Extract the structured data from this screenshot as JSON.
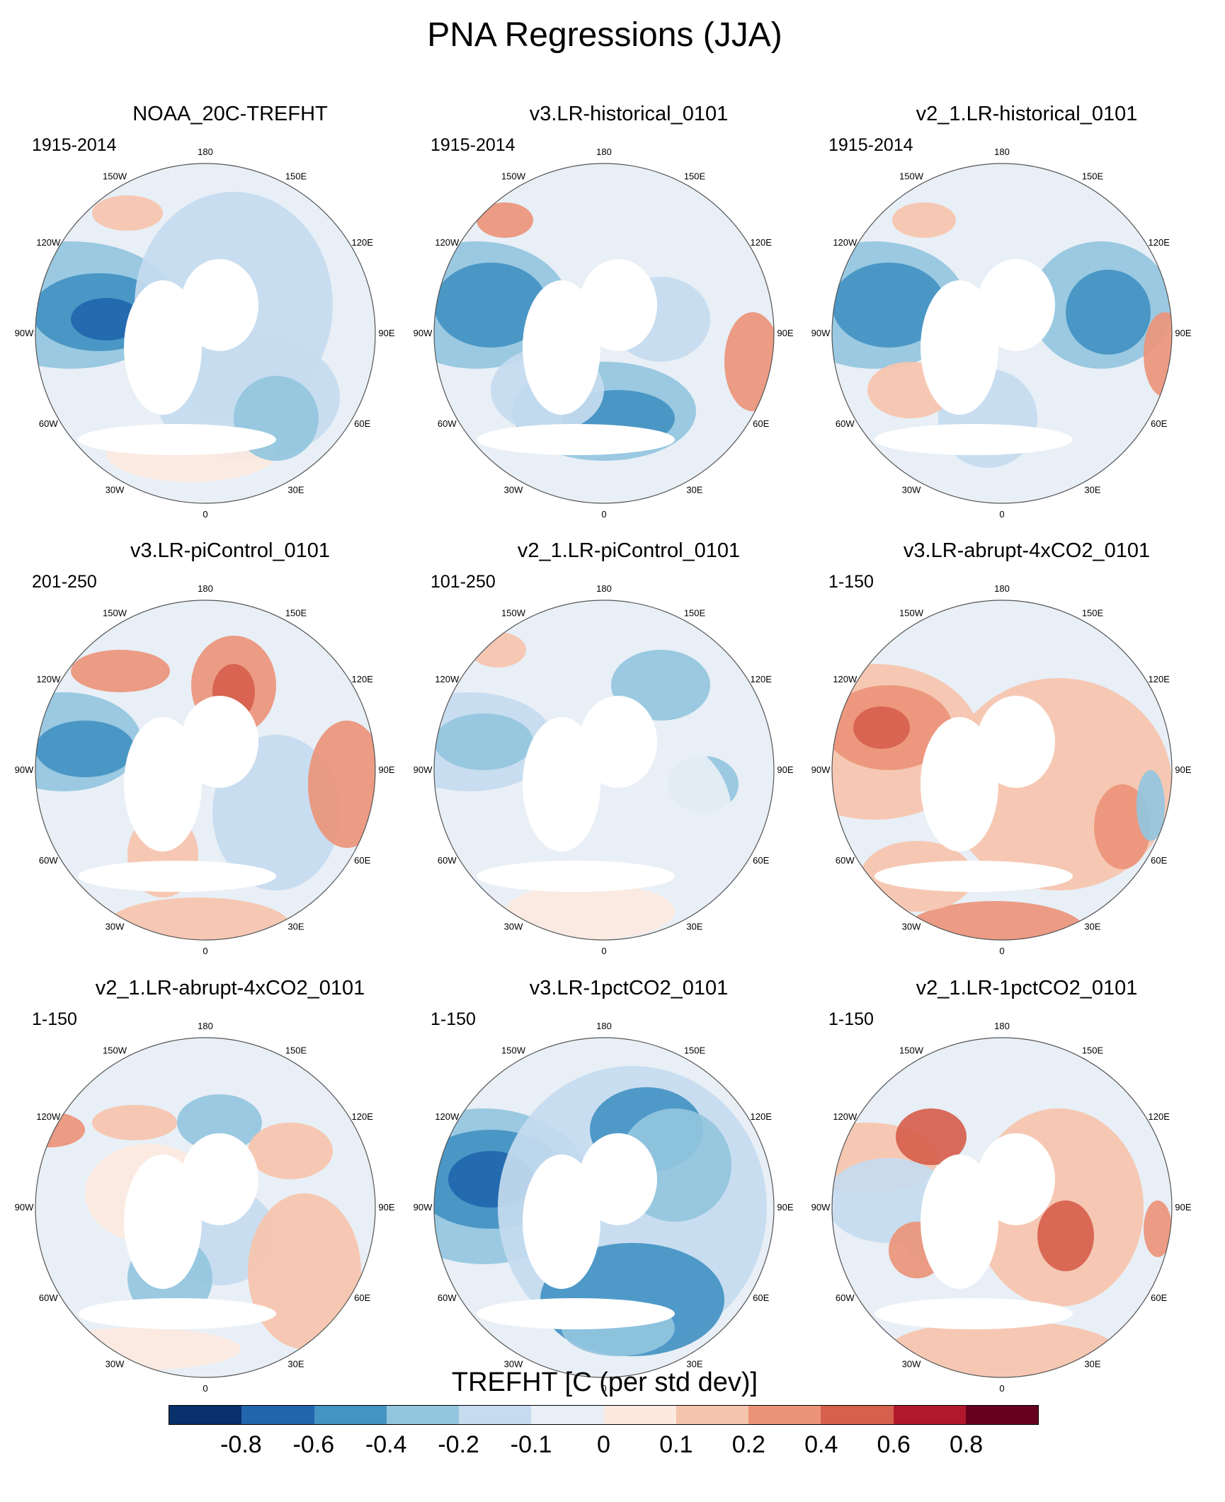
{
  "title": "PNA Regressions (JJA)",
  "panels": [
    {
      "title": "NOAA_20C-TREFHT",
      "period": "1915-2014",
      "pattern": "west-blue"
    },
    {
      "title": "v3.LR-historical_0101",
      "period": "1915-2014",
      "pattern": "west-blue-europe-blue"
    },
    {
      "title": "v2_1.LR-historical_0101",
      "period": "1915-2014",
      "pattern": "west-blue-siberia-blue"
    },
    {
      "title": "v3.LR-piControl_0101",
      "period": "201-250",
      "pattern": "mixed"
    },
    {
      "title": "v2_1.LR-piControl_0101",
      "period": "101-250",
      "pattern": "weak-blue"
    },
    {
      "title": "v3.LR-abrupt-4xCO2_0101",
      "period": "1-150",
      "pattern": "red"
    },
    {
      "title": "v2_1.LR-abrupt-4xCO2_0101",
      "period": "1-150",
      "pattern": "weak-mixed"
    },
    {
      "title": "v3.LR-1pctCO2_0101",
      "period": "1-150",
      "pattern": "strong-blue"
    },
    {
      "title": "v2_1.LR-1pctCO2_0101",
      "period": "1-150",
      "pattern": "weak-red"
    }
  ],
  "longitude_labels": [
    "180",
    "150E",
    "120E",
    "90E",
    "60E",
    "30E",
    "0",
    "30W",
    "60W",
    "90W",
    "120W",
    "150W"
  ],
  "colorbar": {
    "title": "TREFHT [C (per std dev)]",
    "ticks": [
      "-0.8",
      "-0.6",
      "-0.4",
      "-0.2",
      "-0.1",
      "0",
      "0.1",
      "0.2",
      "0.4",
      "0.6",
      "0.8"
    ],
    "colors": [
      "#08306b",
      "#2166ac",
      "#4393c3",
      "#92c5de",
      "#c6dbef",
      "#e8eff6",
      "#fbe9e0",
      "#f6c4ad",
      "#ec9479",
      "#d6604d",
      "#b2182b",
      "#67001f"
    ]
  }
}
